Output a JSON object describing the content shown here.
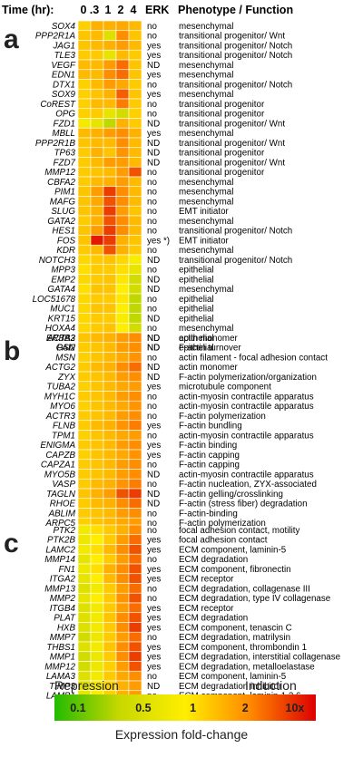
{
  "header": {
    "time_label": "Time (hr):",
    "time_points": [
      "0",
      ".3",
      "1",
      "2",
      "4"
    ],
    "erk": "ERK",
    "phenotype": "Phenotype / Function"
  },
  "legend": {
    "repression": "Repression",
    "induction": "Induction",
    "ticks": [
      "0.1",
      "0.5",
      "1",
      "2",
      "10x"
    ],
    "caption": "Expression fold-change",
    "colors": [
      "#22bb00",
      "#c8d800",
      "#ffee00",
      "#ff8800",
      "#dd0000"
    ]
  },
  "chart_data": {
    "type": "heatmap",
    "columns": [
      "0",
      ".3",
      "1",
      "2",
      "4"
    ],
    "value_unit": "fold-change",
    "color_scale": {
      "min": 0.1,
      "max": 10,
      "log": true
    },
    "panels": [
      {
        "label": "a",
        "rows": [
          {
            "gene": "SOX4",
            "erk": "no",
            "function": "mesenchymal",
            "values": [
              1.4,
              2,
              2,
              2.2,
              1.8
            ]
          },
          {
            "gene": "PPP2R1A",
            "erk": "no",
            "function": "transitional progenitor/ Wnt",
            "values": [
              1.6,
              1.8,
              0.5,
              3,
              1.6
            ]
          },
          {
            "gene": "JAG1",
            "erk": "yes",
            "function": "transitional progenitor/ Notch",
            "values": [
              1.6,
              1.8,
              2,
              2.5,
              1.8
            ]
          },
          {
            "gene": "TLE3",
            "erk": "yes",
            "function": "transitional progenitor/ Notch",
            "values": [
              1.5,
              1.5,
              0.6,
              1.8,
              1.5
            ]
          },
          {
            "gene": "VEGF",
            "erk": "ND",
            "function": "mesenchymal",
            "values": [
              1.8,
              1.8,
              2.5,
              4,
              1.6
            ]
          },
          {
            "gene": "EDN1",
            "erk": "yes",
            "function": "mesenchymal",
            "values": [
              1.8,
              1.8,
              3,
              4,
              1.6
            ]
          },
          {
            "gene": "DTX1",
            "erk": "no",
            "function": "transitional progenitor/ Notch",
            "values": [
              1.4,
              1.8,
              2.5,
              2.2,
              1.5
            ]
          },
          {
            "gene": "SOX9",
            "erk": "yes",
            "function": "mesenchymal",
            "values": [
              1.4,
              1.6,
              2,
              4.5,
              1.6
            ]
          },
          {
            "gene": "CoREST",
            "erk": "no",
            "function": "transitional progenitor",
            "values": [
              1.4,
              1.8,
              1.8,
              3.5,
              1.5
            ]
          },
          {
            "gene": "OPG",
            "erk": "no",
            "function": "transitional progenitor",
            "values": [
              1.4,
              1.5,
              0.6,
              0.4,
              1.4
            ]
          },
          {
            "gene": "FZD1",
            "erk": "ND",
            "function": "transitional progenitor/ Wnt",
            "values": [
              0.8,
              0.6,
              0.3,
              2,
              1.5
            ]
          },
          {
            "gene": "MBLL",
            "erk": "yes",
            "function": "mesenchymal",
            "values": [
              1.8,
              2,
              2.5,
              3,
              2
            ]
          },
          {
            "gene": "PPP2R1B",
            "erk": "ND",
            "function": "transitional progenitor/ Wnt",
            "values": [
              1.6,
              1.8,
              1.8,
              3,
              1.8
            ]
          },
          {
            "gene": "TP63",
            "erk": "ND",
            "function": "transitional progenitor",
            "values": [
              1.5,
              2,
              1.6,
              2.8,
              1.8
            ]
          },
          {
            "gene": "FZD7",
            "erk": "ND",
            "function": "transitional progenitor/ Wnt",
            "values": [
              1.5,
              1.8,
              2.5,
              2.5,
              1.8
            ]
          },
          {
            "gene": "MMP12",
            "erk": "no",
            "function": "transitional progenitor",
            "values": [
              1.5,
              1.6,
              1.8,
              2.5,
              5
            ]
          },
          {
            "gene": "CBFA2",
            "erk": "no",
            "function": "mesenchymal",
            "values": [
              1.5,
              1.8,
              2,
              2.5,
              1.8
            ]
          },
          {
            "gene": "PIM1",
            "erk": "no",
            "function": "mesenchymal",
            "values": [
              1.6,
              2.5,
              6,
              3,
              1.8
            ]
          },
          {
            "gene": "MAFG",
            "erk": "no",
            "function": "mesenchymal",
            "values": [
              1.6,
              2.2,
              5,
              3,
              1.8
            ]
          },
          {
            "gene": "SLUG",
            "erk": "no",
            "function": "EMT initiator",
            "values": [
              1.6,
              2,
              6,
              2.5,
              1.6
            ]
          },
          {
            "gene": "GATA2",
            "erk": "no",
            "function": "mesenchymal",
            "values": [
              1.5,
              2,
              5,
              3,
              1.8
            ]
          },
          {
            "gene": "HES1",
            "erk": "no",
            "function": "transitional progenitor/ Notch",
            "values": [
              1.6,
              2.5,
              6,
              3,
              1.8
            ]
          },
          {
            "gene": "FOS",
            "erk": "yes *)",
            "function": "EMT initiator",
            "values": [
              1.6,
              8,
              6,
              2,
              1.6
            ]
          },
          {
            "gene": "KDR",
            "erk": "no",
            "function": "mesenchymal",
            "values": [
              1.5,
              1.8,
              5,
              2,
              1.5
            ]
          },
          {
            "gene": "NOTCH3",
            "erk": "ND",
            "function": "transitional progenitor/ Notch",
            "values": [
              1.3,
              1.5,
              1.6,
              1.3,
              0.9
            ]
          },
          {
            "gene": "MPP3",
            "erk": "no",
            "function": "epithelial",
            "values": [
              1.2,
              1.5,
              1.5,
              1.2,
              0.6
            ]
          },
          {
            "gene": "EMP2",
            "erk": "ND",
            "function": "epithelial",
            "values": [
              1.3,
              1.5,
              1.6,
              1.1,
              0.4
            ]
          },
          {
            "gene": "GATA4",
            "erk": "ND",
            "function": "mesenchymal",
            "values": [
              1.2,
              1.6,
              1.6,
              1,
              0.4
            ]
          },
          {
            "gene": "LOC51678",
            "erk": "no",
            "function": "epithelial",
            "values": [
              1.3,
              1.5,
              1.5,
              1.1,
              0.3
            ]
          },
          {
            "gene": "MUC1",
            "erk": "no",
            "function": "epithelial",
            "values": [
              1.3,
              1.6,
              1.6,
              1,
              0.3
            ]
          },
          {
            "gene": "KRT15",
            "erk": "ND",
            "function": "epithelial",
            "values": [
              1.3,
              1.5,
              1.5,
              0.9,
              0.3
            ]
          },
          {
            "gene": "HOXA4",
            "erk": "no",
            "function": "mesenchymal",
            "values": [
              1.3,
              1.5,
              1.6,
              1,
              0.4
            ]
          },
          {
            "gene": "ERBB3",
            "erk": "ND",
            "function": "epithelial",
            "values": [
              1.3,
              1.5,
              1.5,
              0.9,
              0.3
            ]
          },
          {
            "gene": "PAI2",
            "erk": "ND",
            "function": "epithelial",
            "values": [
              1.3,
              1.5,
              1.6,
              1,
              0.3
            ]
          }
        ]
      },
      {
        "label": "b",
        "rows": [
          {
            "gene": "ACTA2",
            "erk": "ND",
            "function": "actin monomer",
            "values": [
              1.6,
              1.8,
              2,
              2.5,
              3
            ]
          },
          {
            "gene": "GSN",
            "erk": "ND",
            "function": "F-actin turnover",
            "values": [
              1.5,
              1.6,
              1.8,
              2.5,
              3
            ]
          },
          {
            "gene": "MSN",
            "erk": "no",
            "function": "actin filament - focal adhesion contact",
            "values": [
              1.4,
              1.6,
              1.8,
              2.2,
              2.8
            ]
          },
          {
            "gene": "ACTG2",
            "erk": "ND",
            "function": "actin monomer",
            "values": [
              1.5,
              1.8,
              2,
              3,
              4
            ]
          },
          {
            "gene": "ZYX",
            "erk": "ND",
            "function": "F-actin polymerization/organization",
            "values": [
              1.5,
              1.6,
              1.8,
              2.5,
              3
            ]
          },
          {
            "gene": "TUBA2",
            "erk": "yes",
            "function": "microtubule component",
            "values": [
              1.4,
              1.6,
              1.8,
              2.2,
              2.5
            ]
          },
          {
            "gene": "MYH1C",
            "erk": "no",
            "function": "actin-myosin contractile apparatus",
            "values": [
              1.5,
              1.6,
              1.8,
              2.5,
              3
            ]
          },
          {
            "gene": "MYO6",
            "erk": "no",
            "function": "actin-myosin contractile apparatus",
            "values": [
              1.4,
              1.6,
              1.8,
              2.2,
              2.8
            ]
          },
          {
            "gene": "ACTR3",
            "erk": "no",
            "function": "F-actin polymerization",
            "values": [
              1.5,
              1.6,
              1.8,
              2.5,
              3
            ]
          },
          {
            "gene": "FLNB",
            "erk": "yes",
            "function": "F-actin bundling",
            "values": [
              1.5,
              1.8,
              2,
              2.8,
              3.5
            ]
          },
          {
            "gene": "TPM1",
            "erk": "no",
            "function": "actin-myosin contractile apparatus",
            "values": [
              1.4,
              1.6,
              1.8,
              2.2,
              2.5
            ]
          },
          {
            "gene": "ENIGMA",
            "erk": "yes",
            "function": "F-actin binding",
            "values": [
              1.5,
              1.6,
              1.8,
              2.5,
              3
            ]
          },
          {
            "gene": "CAPZB",
            "erk": "yes",
            "function": "F-actin capping",
            "values": [
              1.4,
              1.6,
              1.8,
              2.2,
              2.8
            ]
          },
          {
            "gene": "CAPZA1",
            "erk": "no",
            "function": "F-actin capping",
            "values": [
              1.5,
              1.6,
              1.8,
              2.5,
              3
            ]
          },
          {
            "gene": "MYO5B",
            "erk": "ND",
            "function": "actin-myosin contractile apparatus",
            "values": [
              1.5,
              1.6,
              1.8,
              2.5,
              3
            ]
          },
          {
            "gene": "VASP",
            "erk": "no",
            "function": "F-actin nucleation, ZYX-associated",
            "values": [
              1.5,
              1.8,
              2,
              2.8,
              3.5
            ]
          },
          {
            "gene": "TAGLN",
            "erk": "ND",
            "function": "F-actin gelling/crosslinking",
            "values": [
              1.6,
              2,
              2.5,
              5,
              6
            ]
          },
          {
            "gene": "RHOE",
            "erk": "ND",
            "function": "F-actin (stress fiber) degradation",
            "values": [
              1.5,
              1.8,
              2,
              3,
              4
            ]
          },
          {
            "gene": "ABLIM",
            "erk": "no",
            "function": "F-actin-binding",
            "values": [
              1.5,
              1.6,
              1.8,
              2.5,
              3
            ]
          },
          {
            "gene": "ARPC5",
            "erk": "no",
            "function": "F-actin polymerization",
            "values": [
              1.4,
              1.6,
              1.8,
              2.2,
              2.5
            ]
          }
        ]
      },
      {
        "label": "c",
        "rows": [
          {
            "gene": "PTK2",
            "erk": "no",
            "function": "focal adhesion contact, motility",
            "values": [
              0.8,
              1.2,
              1.5,
              2,
              3
            ]
          },
          {
            "gene": "PTK2B",
            "erk": "yes",
            "function": "focal adhesion contact",
            "values": [
              0.7,
              1,
              1.5,
              2.5,
              4
            ]
          },
          {
            "gene": "LAMC2",
            "erk": "yes",
            "function": "ECM component, laminin-5",
            "values": [
              0.8,
              1.2,
              1.8,
              3,
              5
            ]
          },
          {
            "gene": "MMP14",
            "erk": "no",
            "function": "ECM degradation",
            "values": [
              0.6,
              1,
              1.5,
              2.5,
              4
            ]
          },
          {
            "gene": "FN1",
            "erk": "yes",
            "function": "ECM component, fibronectin",
            "values": [
              0.7,
              1.2,
              2,
              3,
              5
            ]
          },
          {
            "gene": "ITGA2",
            "erk": "yes",
            "function": "ECM receptor",
            "values": [
              0.6,
              1,
              1.8,
              3,
              5
            ]
          },
          {
            "gene": "MMP13",
            "erk": "no",
            "function": "ECM degradation, collagenase III",
            "values": [
              0.5,
              0.8,
              1.5,
              2.5,
              4
            ]
          },
          {
            "gene": "MMP2",
            "erk": "no",
            "function": "ECM degradation, type IV collagenase",
            "values": [
              0.6,
              1,
              1.5,
              2.8,
              5
            ]
          },
          {
            "gene": "ITGB4",
            "erk": "yes",
            "function": "ECM receptor",
            "values": [
              0.5,
              0.8,
              1.5,
              2.5,
              4
            ]
          },
          {
            "gene": "PLAT",
            "erk": "yes",
            "function": "ECM degradation",
            "values": [
              0.5,
              0.8,
              1.6,
              3,
              5
            ]
          },
          {
            "gene": "HXB",
            "erk": "yes",
            "function": "ECM component, tenascin C",
            "values": [
              0.5,
              0.8,
              1.5,
              3,
              6
            ]
          },
          {
            "gene": "MMP7",
            "erk": "no",
            "function": "ECM degradation, matrilysin",
            "values": [
              0.4,
              0.7,
              1.5,
              2.5,
              4
            ]
          },
          {
            "gene": "THBS1",
            "erk": "yes",
            "function": "ECM component, thrombondin 1",
            "values": [
              0.5,
              0.8,
              1.6,
              3,
              5
            ]
          },
          {
            "gene": "MMP1",
            "erk": "yes",
            "function": "ECM degradation, interstitial collagenase",
            "values": [
              0.4,
              0.7,
              1.5,
              3,
              6
            ]
          },
          {
            "gene": "MMP12",
            "erk": "yes",
            "function": "ECM degradation, metalloelastase",
            "values": [
              0.4,
              0.7,
              1.4,
              2.5,
              5
            ]
          },
          {
            "gene": "LAMA3",
            "erk": "no",
            "function": "ECM component, laminin-5",
            "values": [
              0.5,
              0.8,
              1.5,
              2.2,
              3
            ]
          },
          {
            "gene": "TIMP3",
            "erk": "ND",
            "function": "ECM degradation inhibitor",
            "values": [
              0.5,
              0.8,
              1.3,
              2,
              2.5
            ]
          },
          {
            "gene": "LAMB1",
            "erk": "no",
            "function": "ECM component, laminin-1,2,6",
            "values": [
              0.6,
              0.9,
              1.4,
              2,
              2.5
            ]
          }
        ]
      }
    ]
  }
}
